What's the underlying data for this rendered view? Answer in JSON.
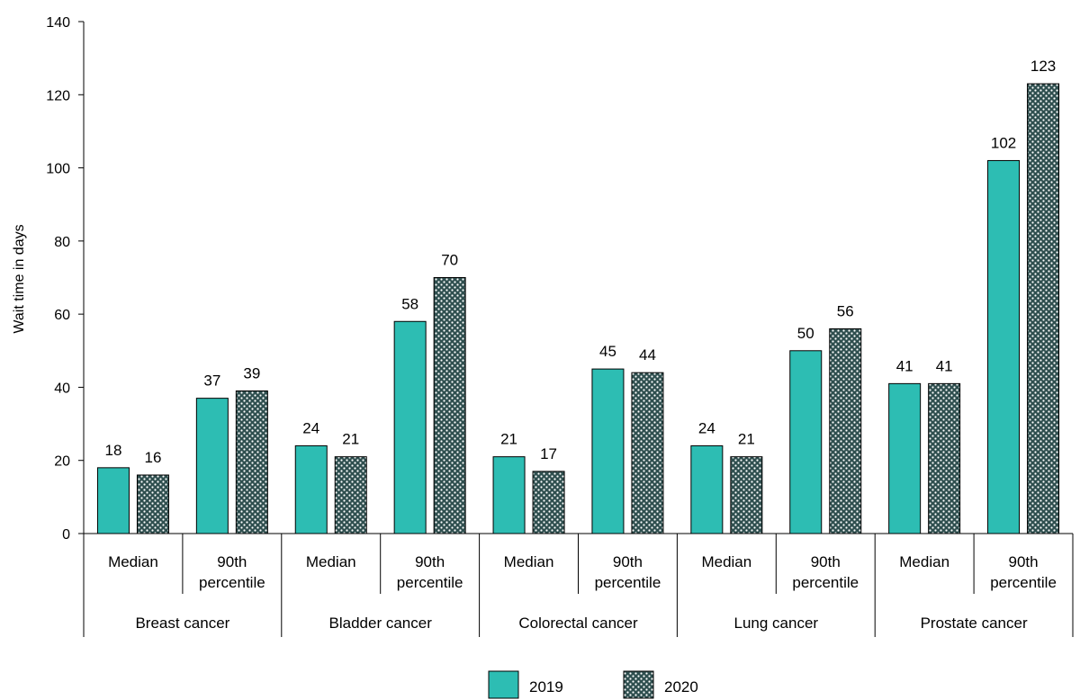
{
  "chart_data": {
    "type": "bar",
    "title": "",
    "xlabel": "",
    "ylabel": "Wait time in days",
    "ylim": [
      0,
      140
    ],
    "yticks": [
      0,
      20,
      40,
      60,
      80,
      100,
      120,
      140
    ],
    "grid": false,
    "legend_position": "bottom-center",
    "groups": [
      "Breast cancer",
      "Bladder cancer",
      "Colorectal cancer",
      "Lung cancer",
      "Prostate cancer"
    ],
    "subcategories": [
      [
        "Median"
      ],
      [
        "90th",
        "percentile"
      ]
    ],
    "series": [
      {
        "name": "2019",
        "color": "#2dbdb3",
        "pattern": "solid",
        "values": [
          18,
          37,
          24,
          58,
          21,
          45,
          24,
          50,
          41,
          102
        ],
        "labels": [
          "18",
          "37",
          "24",
          "58",
          "21",
          "45",
          "24",
          "50",
          "41",
          "102"
        ]
      },
      {
        "name": "2020",
        "color": "#2f4f4f",
        "pattern": "dotted",
        "values": [
          16,
          39,
          21,
          70,
          17,
          44,
          21,
          56,
          41,
          123
        ],
        "labels": [
          "16",
          "39",
          "21",
          "70",
          "17",
          "44",
          "21",
          "56",
          "41",
          "123"
        ]
      }
    ]
  }
}
